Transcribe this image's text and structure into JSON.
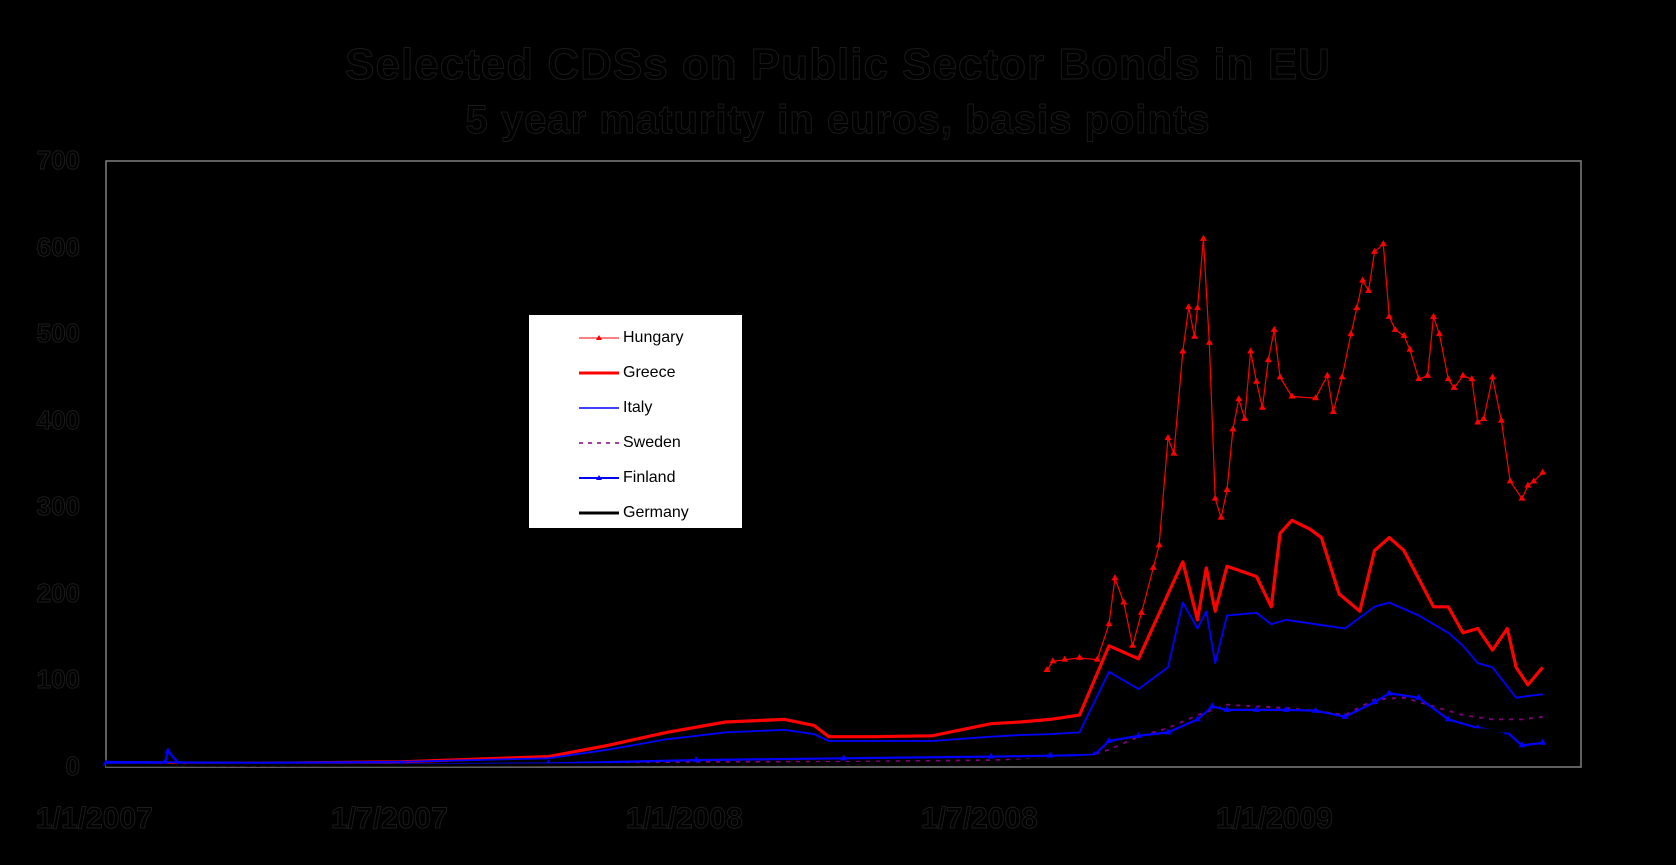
{
  "title": {
    "line1": "Selected CDSs on Public Sector Bonds in EU",
    "line2": "5 year maturity in euros, basis points"
  },
  "annotation": "",
  "colors": {
    "Hungary": "#ff0000",
    "Greece": "#ff0000",
    "Italy": "#0000ff",
    "Sweden": "#800080",
    "Finland": "#0000ff",
    "Germany": "#000000",
    "frame": "#808080",
    "background": "#000000"
  },
  "legend": [
    {
      "label": "Hungary",
      "style": "thin-marker",
      "color": "#ff0000"
    },
    {
      "label": "Greece",
      "style": "thick",
      "color": "#ff0000"
    },
    {
      "label": "Italy",
      "style": "solid",
      "color": "#0000ff"
    },
    {
      "label": "Sweden",
      "style": "dashed",
      "color": "#800080"
    },
    {
      "label": "Finland",
      "style": "marker",
      "color": "#0000ff"
    },
    {
      "label": "Germany",
      "style": "thick",
      "color": "#000000"
    }
  ],
  "chart_data": {
    "type": "line",
    "title": "Selected CDSs on Public Sector Bonds in EU",
    "subtitle": "5 year maturity in euros, basis points",
    "xlabel": "",
    "ylabel": "basis points",
    "ylim": [
      0,
      700
    ],
    "yticks": [
      0,
      100,
      200,
      300,
      400,
      500,
      600,
      700
    ],
    "xticks": [
      "1/1/2007",
      "1/7/2007",
      "1/1/2008",
      "1/7/2008",
      "1/1/2009"
    ],
    "x_unit": "half-years since 1/1/2007 (0 = 1/1/2007, 1 = 1/7/2007, 2 = 1/1/2008, 3 = 1/7/2008, 4 = 1/1/2009)",
    "grid": false,
    "legend_position": "inside upper-left-center",
    "series": [
      {
        "name": "Hungary",
        "x": [
          3.19,
          3.21,
          3.25,
          3.3,
          3.36,
          3.4,
          3.42,
          3.45,
          3.48,
          3.51,
          3.55,
          3.57,
          3.6,
          3.62,
          3.65,
          3.67,
          3.69,
          3.7,
          3.72,
          3.74,
          3.76,
          3.78,
          3.8,
          3.82,
          3.84,
          3.86,
          3.88,
          3.9,
          3.92,
          3.94,
          3.96,
          3.98,
          4.02,
          4.1,
          4.14,
          4.16,
          4.19,
          4.22,
          4.24,
          4.26,
          4.28,
          4.3,
          4.33,
          4.35,
          4.37,
          4.4,
          4.42,
          4.45,
          4.48,
          4.5,
          4.52,
          4.55,
          4.57,
          4.6,
          4.63,
          4.65,
          4.67,
          4.7,
          4.73,
          4.76,
          4.8,
          4.82,
          4.84,
          4.87
        ],
        "values": [
          112,
          122,
          124,
          126,
          124,
          165,
          218,
          190,
          140,
          178,
          230,
          256,
          380,
          362,
          480,
          531,
          497,
          530,
          610,
          490,
          310,
          288,
          320,
          390,
          425,
          402,
          480,
          445,
          415,
          470,
          505,
          450,
          428,
          426,
          452,
          410,
          450,
          500,
          530,
          562,
          550,
          595,
          604,
          520,
          505,
          498,
          482,
          448,
          452,
          520,
          500,
          448,
          438,
          452,
          448,
          398,
          402,
          450,
          400,
          330,
          310,
          325,
          330,
          340
        ]
      },
      {
        "name": "Greece",
        "x": [
          0.0,
          0.5,
          1.0,
          1.5,
          1.7,
          1.9,
          2.1,
          2.3,
          2.4,
          2.45,
          2.6,
          2.8,
          3.0,
          3.1,
          3.2,
          3.3,
          3.4,
          3.5,
          3.6,
          3.65,
          3.7,
          3.73,
          3.76,
          3.8,
          3.9,
          3.95,
          3.98,
          4.02,
          4.08,
          4.12,
          4.18,
          4.25,
          4.3,
          4.35,
          4.4,
          4.5,
          4.55,
          4.6,
          4.65,
          4.7,
          4.75,
          4.78,
          4.82,
          4.87
        ],
        "values": [
          5,
          4,
          6,
          12,
          25,
          40,
          52,
          55,
          48,
          35,
          35,
          36,
          50,
          52,
          55,
          60,
          140,
          125,
          200,
          237,
          170,
          230,
          180,
          232,
          220,
          185,
          270,
          285,
          275,
          265,
          200,
          180,
          250,
          265,
          250,
          185,
          185,
          155,
          160,
          135,
          160,
          115,
          95,
          115
        ]
      },
      {
        "name": "Italy",
        "x": [
          0.0,
          0.5,
          1.0,
          1.5,
          1.7,
          1.9,
          2.1,
          2.3,
          2.4,
          2.45,
          2.6,
          2.8,
          3.0,
          3.1,
          3.2,
          3.3,
          3.4,
          3.5,
          3.6,
          3.65,
          3.7,
          3.73,
          3.76,
          3.8,
          3.9,
          3.95,
          4.0,
          4.1,
          4.2,
          4.3,
          4.35,
          4.45,
          4.55,
          4.6,
          4.65,
          4.7,
          4.78,
          4.82,
          4.87
        ],
        "values": [
          6,
          5,
          6,
          10,
          20,
          32,
          40,
          43,
          38,
          30,
          30,
          30,
          35,
          37,
          38,
          40,
          110,
          90,
          115,
          190,
          160,
          180,
          120,
          175,
          178,
          165,
          170,
          165,
          160,
          185,
          190,
          175,
          155,
          140,
          120,
          115,
          80,
          82,
          84
        ]
      },
      {
        "name": "Sweden",
        "x": [
          0.0,
          0.5,
          1.0,
          1.5,
          2.0,
          2.5,
          3.0,
          3.3,
          3.4,
          3.5,
          3.6,
          3.7,
          3.8,
          3.9,
          4.0,
          4.1,
          4.2,
          4.3,
          4.4,
          4.5,
          4.6,
          4.7,
          4.8,
          4.87
        ],
        "values": [
          2,
          1,
          2,
          4,
          6,
          6,
          8,
          10,
          20,
          35,
          45,
          60,
          72,
          70,
          68,
          65,
          60,
          78,
          80,
          70,
          60,
          55,
          55,
          58
        ]
      },
      {
        "name": "Finland",
        "x": [
          0.0,
          0.2,
          0.21,
          0.25,
          0.5,
          1.0,
          1.5,
          2.0,
          2.5,
          3.0,
          3.2,
          3.35,
          3.4,
          3.5,
          3.6,
          3.7,
          3.75,
          3.8,
          3.9,
          4.0,
          4.1,
          4.2,
          4.3,
          4.35,
          4.45,
          4.55,
          4.65,
          4.75,
          4.8,
          4.87
        ],
        "values": [
          4,
          5,
          18,
          3,
          3,
          3,
          4,
          8,
          10,
          12,
          13,
          14,
          30,
          36,
          40,
          55,
          70,
          66,
          66,
          66,
          65,
          58,
          75,
          85,
          80,
          55,
          45,
          40,
          25,
          28
        ]
      },
      {
        "name": "Germany",
        "x": [
          0.0,
          1.0,
          2.0,
          3.0,
          3.5,
          4.0,
          4.5,
          4.87
        ],
        "values": [
          2,
          2,
          3,
          5,
          15,
          30,
          45,
          40
        ]
      }
    ]
  }
}
